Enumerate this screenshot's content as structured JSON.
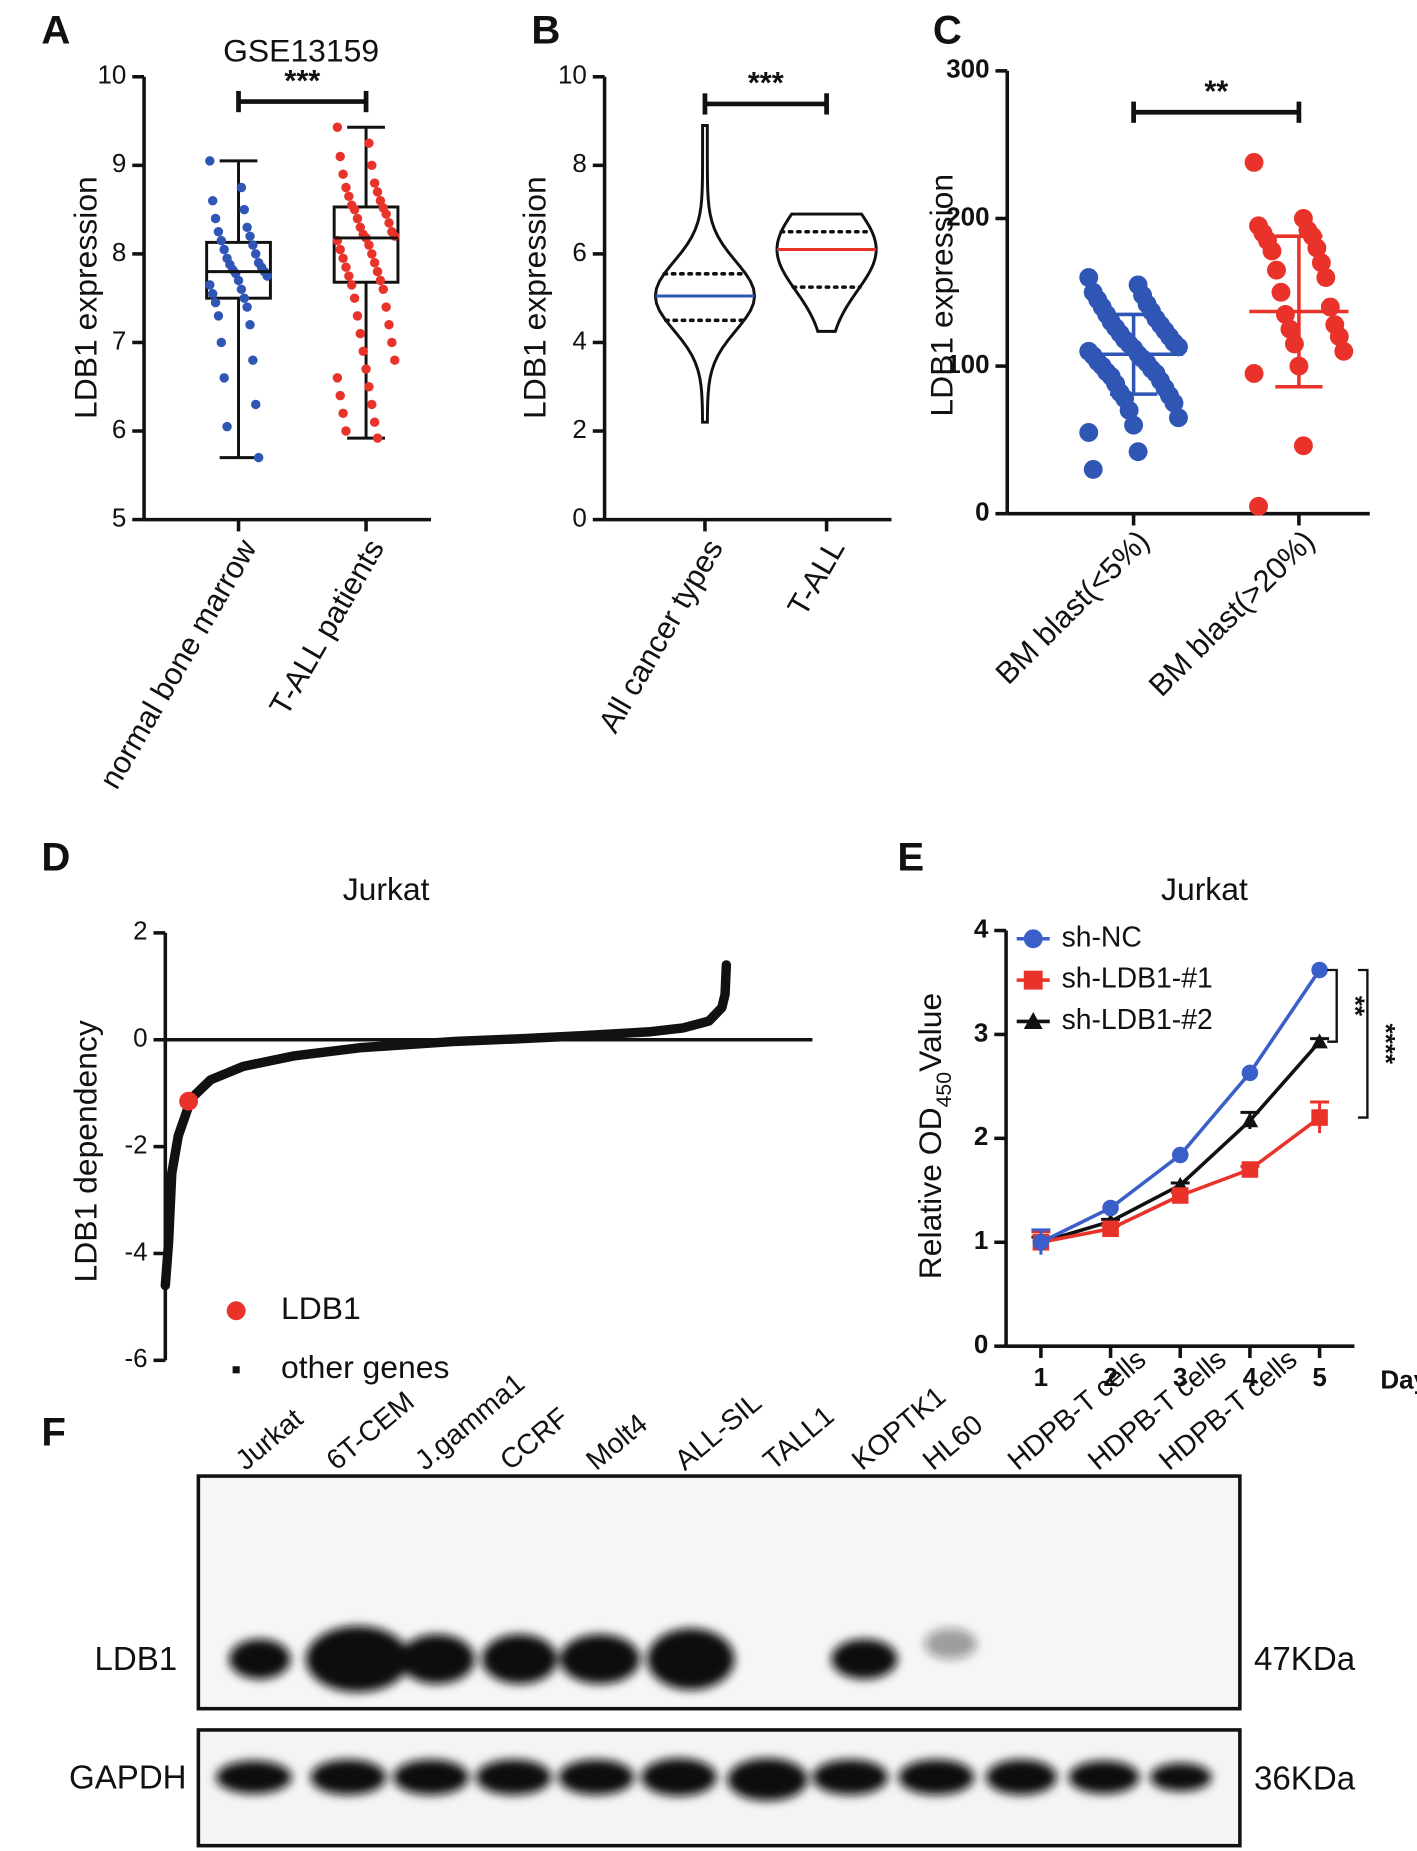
{
  "chart_data": [
    {
      "type": "box",
      "panel": "A",
      "title": "GSE13159",
      "ylabel": "LDB1 expression",
      "categories": [
        "normal bone marrow",
        "T-ALL patients"
      ],
      "colors": [
        "#2f55b5",
        "#e8322a"
      ],
      "boxes": [
        {
          "min": 5.7,
          "q1": 7.5,
          "median": 7.8,
          "q3": 8.13,
          "max": 9.05
        },
        {
          "min": 5.92,
          "q1": 7.68,
          "median": 8.18,
          "q3": 8.53,
          "max": 9.43
        }
      ],
      "points": [
        [
          9.05,
          8.75,
          8.6,
          8.5,
          8.4,
          8.3,
          8.25,
          8.2,
          8.15,
          8.1,
          8.05,
          8.0,
          7.95,
          7.9,
          7.88,
          7.85,
          7.82,
          7.8,
          7.78,
          7.75,
          7.7,
          7.65,
          7.6,
          7.55,
          7.5,
          7.45,
          7.4,
          7.3,
          7.2,
          7.0,
          6.8,
          6.6,
          6.3,
          6.05,
          5.7
        ],
        [
          9.43,
          9.25,
          9.1,
          9.0,
          8.9,
          8.8,
          8.75,
          8.7,
          8.65,
          8.6,
          8.55,
          8.52,
          8.5,
          8.45,
          8.4,
          8.35,
          8.3,
          8.25,
          8.22,
          8.2,
          8.18,
          8.15,
          8.1,
          8.05,
          8.0,
          7.95,
          7.9,
          7.85,
          7.8,
          7.75,
          7.7,
          7.65,
          7.6,
          7.5,
          7.4,
          7.3,
          7.2,
          7.1,
          7.0,
          6.9,
          6.8,
          6.7,
          6.6,
          6.5,
          6.4,
          6.3,
          6.2,
          6.1,
          6.0,
          5.92
        ]
      ],
      "significance": "***",
      "ylim": [
        5,
        10
      ],
      "yticks": [
        5,
        6,
        7,
        8,
        9,
        10
      ]
    },
    {
      "type": "violin",
      "panel": "B",
      "ylabel": "LDB1 expression",
      "categories": [
        "All cancer types",
        "T-ALL"
      ],
      "colors": [
        "#2f55b5",
        "#e8322a"
      ],
      "violins": [
        {
          "min": 2.2,
          "q1": 4.5,
          "median": 5.05,
          "q3": 5.55,
          "max": 8.9
        },
        {
          "min": 4.25,
          "q1": 5.25,
          "median": 6.1,
          "q3": 6.5,
          "max": 6.9
        }
      ],
      "significance": "***",
      "ylim": [
        0,
        10
      ],
      "yticks": [
        0,
        2,
        4,
        6,
        8,
        10
      ]
    },
    {
      "type": "dot",
      "panel": "C",
      "ylabel": "LDB1 expression",
      "categories": [
        "BM blast(<5%)",
        "BM blast(>20%)"
      ],
      "colors": [
        "#2f55b5",
        "#e8322a"
      ],
      "points": [
        [
          160,
          155,
          150,
          148,
          145,
          142,
          140,
          137,
          135,
          132,
          130,
          128,
          126,
          124,
          122,
          120,
          118,
          116,
          115,
          113,
          112,
          110,
          108,
          107,
          105,
          103,
          102,
          100,
          98,
          96,
          95,
          93,
          90,
          88,
          85,
          82,
          80,
          78,
          75,
          70,
          65,
          60,
          55,
          42,
          30
        ],
        [
          238,
          200,
          195,
          192,
          190,
          188,
          185,
          180,
          178,
          170,
          165,
          160,
          150,
          140,
          135,
          128,
          125,
          120,
          115,
          110,
          100,
          95,
          46,
          5
        ]
      ],
      "mean": [
        108,
        137
      ],
      "sd": [
        27,
        51
      ],
      "significance": "**",
      "ylim": [
        0,
        300
      ],
      "yticks": [
        0,
        100,
        200,
        300
      ]
    },
    {
      "type": "line",
      "panel": "D",
      "title": "Jurkat",
      "ylabel": "LDB1 dependency",
      "series": [
        {
          "name": "LDB1",
          "color": "#e8322a",
          "marker": "circle",
          "x": [
            0.036
          ],
          "values": [
            -1.15
          ]
        },
        {
          "name": "other genes",
          "color": "#111111",
          "marker": "dot",
          "x": [
            0,
            0.005,
            0.01,
            0.02,
            0.04,
            0.07,
            0.12,
            0.2,
            0.3,
            0.45,
            0.55,
            0.65,
            0.75,
            0.8,
            0.84,
            0.86,
            0.865,
            0.867
          ],
          "values": [
            -4.6,
            -3.8,
            -2.5,
            -1.8,
            -1.1,
            -0.75,
            -0.5,
            -0.3,
            -0.15,
            -0.03,
            0.02,
            0.08,
            0.15,
            0.22,
            0.35,
            0.6,
            0.85,
            1.4
          ]
        }
      ],
      "xlim": [
        0,
        1
      ],
      "ylim": [
        -6,
        2
      ],
      "yticks": [
        -6,
        -4,
        -2,
        0,
        2
      ]
    },
    {
      "type": "line",
      "panel": "E",
      "title": "Jurkat",
      "ylabel": "Relative OD",
      "ylabel_subscript": "450",
      "ylabel_suffix": "Value",
      "xlabel": "Days",
      "x": [
        1,
        2,
        3,
        4,
        5
      ],
      "series": [
        {
          "name": "sh-NC",
          "color": "#3a5fc8",
          "marker": "circle",
          "values": [
            1.0,
            1.33,
            1.84,
            2.63,
            3.62
          ],
          "errors": [
            0.12,
            null,
            null,
            null,
            null
          ]
        },
        {
          "name": "sh-LDB1-#1",
          "color": "#e8322a",
          "marker": "square",
          "values": [
            1.0,
            1.13,
            1.45,
            1.7,
            2.2
          ],
          "errors": [
            0.1,
            0.03,
            0.03,
            0.03,
            0.15
          ]
        },
        {
          "name": "sh-LDB1-#2",
          "color": "#111111",
          "marker": "triangle",
          "values": [
            1.0,
            1.2,
            1.55,
            2.17,
            2.93
          ],
          "errors": [
            0.05,
            0.02,
            0.02,
            0.08,
            0.03
          ]
        }
      ],
      "significance": [
        "**",
        "****"
      ],
      "xlim": [
        0.5,
        5.5
      ],
      "xticks": [
        1,
        2,
        3,
        4,
        5
      ],
      "ylim": [
        0,
        4
      ],
      "yticks": [
        0,
        1,
        2,
        3,
        4
      ]
    }
  ],
  "western_blot": {
    "panel": "F",
    "lanes": [
      "Jurkat",
      "6T-CEM",
      "J.gamma1",
      "CCRF",
      "Molt4",
      "ALL-SIL",
      "TALL1",
      "KOPTK1",
      "HL60",
      "HDPB-T cells",
      "HDPB-T cells",
      "HDPB-T cells"
    ],
    "rows": [
      {
        "label": "LDB1",
        "size": "47KDa"
      },
      {
        "label": "GAPDH",
        "size": "36KDa"
      }
    ]
  }
}
